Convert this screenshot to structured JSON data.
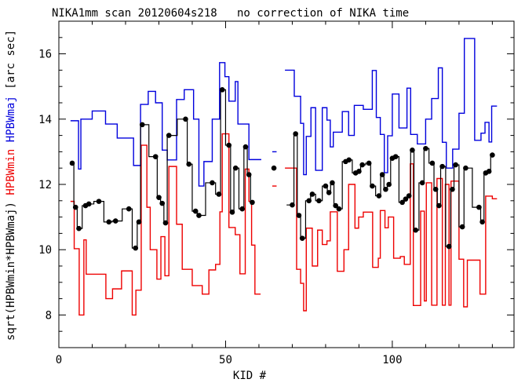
{
  "chart_data": {
    "type": "line",
    "title": "NIKA1mm scan 20120604s218   no correction of NIKA time",
    "xlabel": "KID #",
    "ylabel_parts": [
      {
        "text": "sqrt(HPBWmin*HPBWmaj)",
        "color": "#000000"
      },
      {
        "text": " HPBWmin",
        "color": "#ee0000"
      },
      {
        "text": " HPBWmaj",
        "color": "#0000dd"
      },
      {
        "text": " [arc sec]",
        "color": "#000000"
      }
    ],
    "x_axis": {
      "min": 0,
      "max": 136.5,
      "major_ticks": [
        0,
        50,
        100
      ],
      "major_labels": [
        "0",
        "50",
        "100"
      ],
      "minor_step": 10
    },
    "y_axis": {
      "min": 7,
      "max": 17,
      "major_ticks": [
        8,
        10,
        12,
        14,
        16
      ],
      "major_labels": [
        "8",
        "10",
        "12",
        "14",
        "16"
      ],
      "minor_step": 0.5
    },
    "grid": false,
    "legend": "in y-axis label colors",
    "series": [
      {
        "name": "sqrt(HPBWmin*HPBWmaj)",
        "color": "#000000",
        "style": "filled-circles-with-step-line",
        "runs": [
          {
            "line": true,
            "dots": [
              [
                4,
                12.65
              ],
              [
                5,
                11.3
              ],
              [
                6,
                10.65
              ],
              [
                8,
                11.35
              ],
              [
                9,
                11.4
              ],
              [
                12,
                11.48
              ],
              [
                15,
                10.85
              ],
              [
                17,
                10.88
              ],
              [
                21,
                11.25
              ],
              [
                23,
                10.05
              ],
              [
                24,
                10.85
              ],
              [
                25,
                13.83
              ],
              [
                29,
                12.85
              ],
              [
                30,
                11.6
              ],
              [
                31,
                11.42
              ],
              [
                32,
                10.82
              ],
              [
                33,
                13.5
              ],
              [
                38,
                14.0
              ],
              [
                39,
                12.62
              ],
              [
                41,
                11.18
              ],
              [
                42,
                11.05
              ],
              [
                46,
                12.05
              ],
              [
                48,
                11.7
              ],
              [
                49,
                14.9
              ],
              [
                51,
                13.2
              ],
              [
                52,
                11.15
              ],
              [
                53,
                12.5
              ],
              [
                55,
                11.25
              ],
              [
                56,
                13.15
              ],
              [
                57,
                12.3
              ],
              [
                58,
                11.45
              ]
            ]
          },
          {
            "line": false,
            "dots": [
              [
                64.5,
                12.5
              ]
            ]
          },
          {
            "line": true,
            "start_ext": 68.3,
            "dots": [
              [
                70,
                11.37
              ],
              [
                71,
                13.55
              ],
              [
                72,
                11.05
              ],
              [
                73,
                10.35
              ],
              [
                75,
                11.5
              ],
              [
                76,
                11.7
              ],
              [
                78,
                11.5
              ],
              [
                80,
                11.95
              ],
              [
                81,
                11.75
              ],
              [
                82,
                12.05
              ],
              [
                83,
                11.35
              ],
              [
                84,
                11.25
              ],
              [
                86,
                12.7
              ],
              [
                87,
                12.75
              ],
              [
                89,
                12.35
              ],
              [
                90,
                12.4
              ],
              [
                91,
                12.6
              ],
              [
                93,
                12.65
              ],
              [
                94,
                11.95
              ],
              [
                96,
                11.65
              ],
              [
                97,
                12.3
              ],
              [
                98,
                11.85
              ],
              [
                99,
                12.0
              ],
              [
                100,
                12.8
              ],
              [
                101,
                12.85
              ],
              [
                103,
                11.45
              ],
              [
                104,
                11.55
              ],
              [
                105,
                11.65
              ],
              [
                106,
                13.05
              ],
              [
                107,
                10.6
              ],
              [
                109,
                12.05
              ],
              [
                110,
                13.1
              ],
              [
                112,
                12.65
              ],
              [
                113,
                11.85
              ],
              [
                114,
                11.35
              ],
              [
                115,
                12.55
              ],
              [
                117,
                10.1
              ],
              [
                118,
                11.85
              ],
              [
                119,
                12.6
              ],
              [
                121,
                10.7
              ],
              [
                122,
                12.5
              ],
              [
                126,
                11.3
              ],
              [
                127,
                10.85
              ],
              [
                128,
                12.35
              ],
              [
                129,
                12.4
              ],
              [
                130,
                12.9
              ]
            ]
          }
        ]
      },
      {
        "name": "HPBWmin",
        "color": "#ee0000",
        "style": "step",
        "runs": [
          {
            "end": 60.5,
            "steps": [
              [
                3.5,
                11.48
              ],
              [
                4.6,
                10.03
              ],
              [
                6.1,
                8.0
              ],
              [
                7.5,
                10.3
              ],
              [
                8.2,
                9.25
              ],
              [
                14.1,
                8.5
              ],
              [
                16.1,
                8.8
              ],
              [
                18.8,
                9.35
              ],
              [
                22,
                8.0
              ],
              [
                23.1,
                8.76
              ],
              [
                24.7,
                13.2
              ],
              [
                26.4,
                11.3
              ],
              [
                27.4,
                10.0
              ],
              [
                29.4,
                9.1
              ],
              [
                30.6,
                10.4
              ],
              [
                31.8,
                9.2
              ],
              [
                33,
                12.55
              ],
              [
                35.3,
                10.78
              ],
              [
                37,
                9.4
              ],
              [
                40,
                8.9
              ],
              [
                43,
                8.64
              ],
              [
                45,
                9.38
              ],
              [
                47,
                9.55
              ],
              [
                48.3,
                11.16
              ],
              [
                49,
                13.55
              ],
              [
                51,
                10.68
              ],
              [
                52.9,
                10.46
              ],
              [
                54.3,
                9.26
              ],
              [
                55.9,
                12.47
              ],
              [
                57,
                11.48
              ],
              [
                57.8,
                10.14
              ],
              [
                58.8,
                8.64
              ]
            ]
          },
          {
            "end": 65.3,
            "steps": [
              [
                64,
                11.95
              ]
            ]
          },
          {
            "end": 131.4,
            "steps": [
              [
                67.8,
                12.5
              ],
              [
                71.3,
                9.4
              ],
              [
                72.5,
                8.97
              ],
              [
                73.4,
                8.13
              ],
              [
                74.2,
                10.66
              ],
              [
                76,
                9.5
              ],
              [
                77.6,
                10.6
              ],
              [
                79,
                10.16
              ],
              [
                80.4,
                10.27
              ],
              [
                81.4,
                11.16
              ],
              [
                83.5,
                9.34
              ],
              [
                85.5,
                10.0
              ],
              [
                86.9,
                12.0
              ],
              [
                88.8,
                10.66
              ],
              [
                89.9,
                11.0
              ],
              [
                91.3,
                11.15
              ],
              [
                94.1,
                9.46
              ],
              [
                95.8,
                9.74
              ],
              [
                96.4,
                11.2
              ],
              [
                97.8,
                10.67
              ],
              [
                98.8,
                11.0
              ],
              [
                100.4,
                9.74
              ],
              [
                102.4,
                9.79
              ],
              [
                103.6,
                9.55
              ],
              [
                105.4,
                12.63
              ],
              [
                106.3,
                8.29
              ],
              [
                108.5,
                11.18
              ],
              [
                109.6,
                8.43
              ],
              [
                110.2,
                12.05
              ],
              [
                111.8,
                8.3
              ],
              [
                113.4,
                12.18
              ],
              [
                115,
                8.3
              ],
              [
                115.9,
                12.0
              ],
              [
                117,
                8.3
              ],
              [
                117.6,
                12.1
              ],
              [
                120,
                9.71
              ],
              [
                121.4,
                8.25
              ],
              [
                122.5,
                9.68
              ],
              [
                126.3,
                8.64
              ],
              [
                128,
                11.64
              ],
              [
                130,
                11.56
              ]
            ]
          }
        ]
      },
      {
        "name": "HPBWmaj",
        "color": "#0000dd",
        "style": "step",
        "runs": [
          {
            "end": 60.7,
            "steps": [
              [
                3.5,
                13.95
              ],
              [
                5.9,
                12.47
              ],
              [
                6.6,
                14.0
              ],
              [
                10,
                14.25
              ],
              [
                14,
                13.85
              ],
              [
                17.5,
                13.42
              ],
              [
                22.4,
                12.58
              ],
              [
                24.5,
                14.45
              ],
              [
                26.8,
                14.85
              ],
              [
                29,
                14.5
              ],
              [
                31,
                13.05
              ],
              [
                32.5,
                12.75
              ],
              [
                35.3,
                14.6
              ],
              [
                37.6,
                14.9
              ],
              [
                40.4,
                14.0
              ],
              [
                42,
                11.95
              ],
              [
                43.5,
                12.7
              ],
              [
                46,
                14.0
              ],
              [
                48.2,
                15.73
              ],
              [
                49.8,
                15.3
              ],
              [
                51,
                14.55
              ],
              [
                52.9,
                15.15
              ],
              [
                53.7,
                13.85
              ],
              [
                57,
                12.76
              ]
            ]
          },
          {
            "end": 65.3,
            "steps": [
              [
                64,
                13.0
              ]
            ]
          },
          {
            "end": 131.4,
            "steps": [
              [
                67.8,
                15.5
              ],
              [
                70.6,
                14.7
              ],
              [
                72.5,
                13.87
              ],
              [
                73.4,
                12.3
              ],
              [
                74.2,
                13.47
              ],
              [
                75.6,
                14.35
              ],
              [
                77,
                12.43
              ],
              [
                79,
                14.35
              ],
              [
                80.4,
                13.97
              ],
              [
                81.4,
                13.15
              ],
              [
                82.3,
                13.6
              ],
              [
                85,
                14.23
              ],
              [
                86.9,
                13.5
              ],
              [
                88.6,
                14.42
              ],
              [
                91.3,
                14.3
              ],
              [
                94,
                15.49
              ],
              [
                95.2,
                14.05
              ],
              [
                96.4,
                13.53
              ],
              [
                97.6,
                12.36
              ],
              [
                98.6,
                13.49
              ],
              [
                100,
                14.77
              ],
              [
                102,
                13.73
              ],
              [
                104.4,
                14.95
              ],
              [
                105.5,
                13.53
              ],
              [
                107.5,
                13.24
              ],
              [
                110,
                14.0
              ],
              [
                111.8,
                14.63
              ],
              [
                113.8,
                15.57
              ],
              [
                115,
                13.29
              ],
              [
                116.2,
                12.5
              ],
              [
                118.1,
                13.08
              ],
              [
                120,
                14.18
              ],
              [
                121.6,
                16.47
              ],
              [
                124.7,
                13.35
              ],
              [
                126.6,
                13.57
              ],
              [
                127.8,
                13.9
              ],
              [
                129,
                13.3
              ],
              [
                129.8,
                14.4
              ]
            ]
          }
        ]
      }
    ]
  }
}
